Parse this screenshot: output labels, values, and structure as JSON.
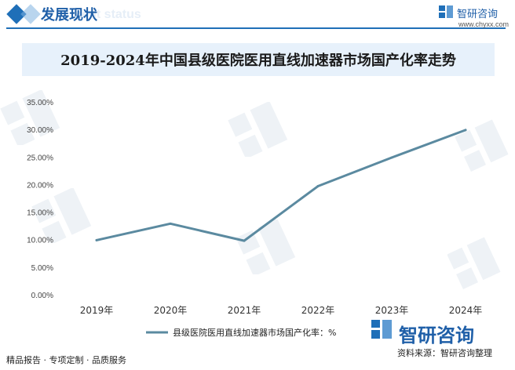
{
  "header": {
    "title": "发展现状",
    "subtitle_watermark": "ment status"
  },
  "brand": {
    "name": "智研咨询",
    "url": "www.chyxx.com"
  },
  "chart_data": {
    "type": "line",
    "title": "2019-2024年中国县级医院医用直线加速器市场国产化率走势",
    "categories": [
      "2019年",
      "2020年",
      "2021年",
      "2022年",
      "2023年",
      "2024年"
    ],
    "series": [
      {
        "name": "县级医院医用直线加速器市场国产化率：%",
        "values": [
          9.9,
          12.9,
          9.8,
          19.7,
          24.9,
          29.9
        ]
      }
    ],
    "ylim": [
      0,
      35
    ],
    "yticks": [
      "0.00%",
      "5.00%",
      "10.00%",
      "15.00%",
      "20.00%",
      "25.00%",
      "30.00%",
      "35.00%"
    ],
    "grid": false,
    "legend_position": "bottom",
    "colors": {
      "line": "#5b8aa0"
    }
  },
  "footer": {
    "left_text": "精品报告 · 专项定制 · 品质服务",
    "source_text": "资料来源：智研咨询整理",
    "logo_text": "智研咨询"
  }
}
